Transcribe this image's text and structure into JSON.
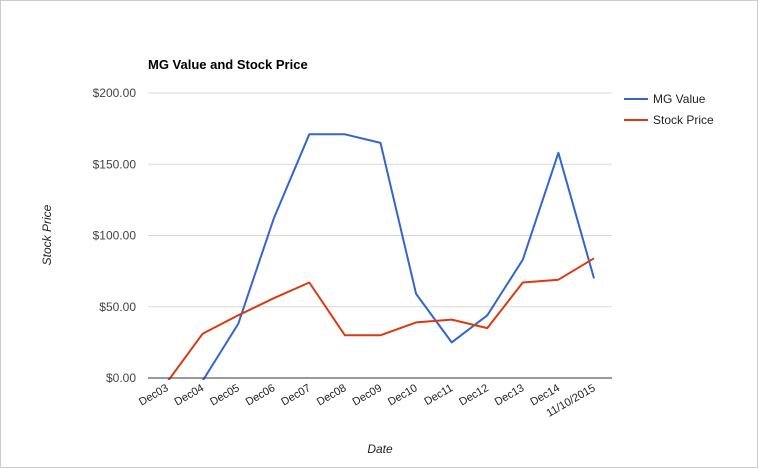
{
  "chart_data": {
    "type": "line",
    "title": "MG Value and Stock Price",
    "xlabel": "Date",
    "ylabel": "Stock Price",
    "categories": [
      "Dec03",
      "Dec04",
      "Dec05",
      "Dec06",
      "Dec07",
      "Dec08",
      "Dec09",
      "Dec10",
      "Dec11",
      "Dec12",
      "Dec13",
      "Dec14",
      "11/10/2015"
    ],
    "y_ticks": [
      "$0.00",
      "$50.00",
      "$100.00",
      "$150.00",
      "$200.00"
    ],
    "ylim": [
      0,
      200
    ],
    "grid": true,
    "legend_position": "right",
    "series": [
      {
        "name": "MG Value",
        "color": "#3366cc",
        "values": [
          -8,
          -2,
          38,
          112,
          171,
          171,
          165,
          59,
          25,
          44,
          83,
          158,
          70
        ]
      },
      {
        "name": "Stock Price",
        "color": "#dc3912",
        "values": [
          -3,
          31,
          44,
          56,
          67,
          30,
          30,
          39,
          41,
          35,
          67,
          69,
          84
        ]
      }
    ]
  }
}
